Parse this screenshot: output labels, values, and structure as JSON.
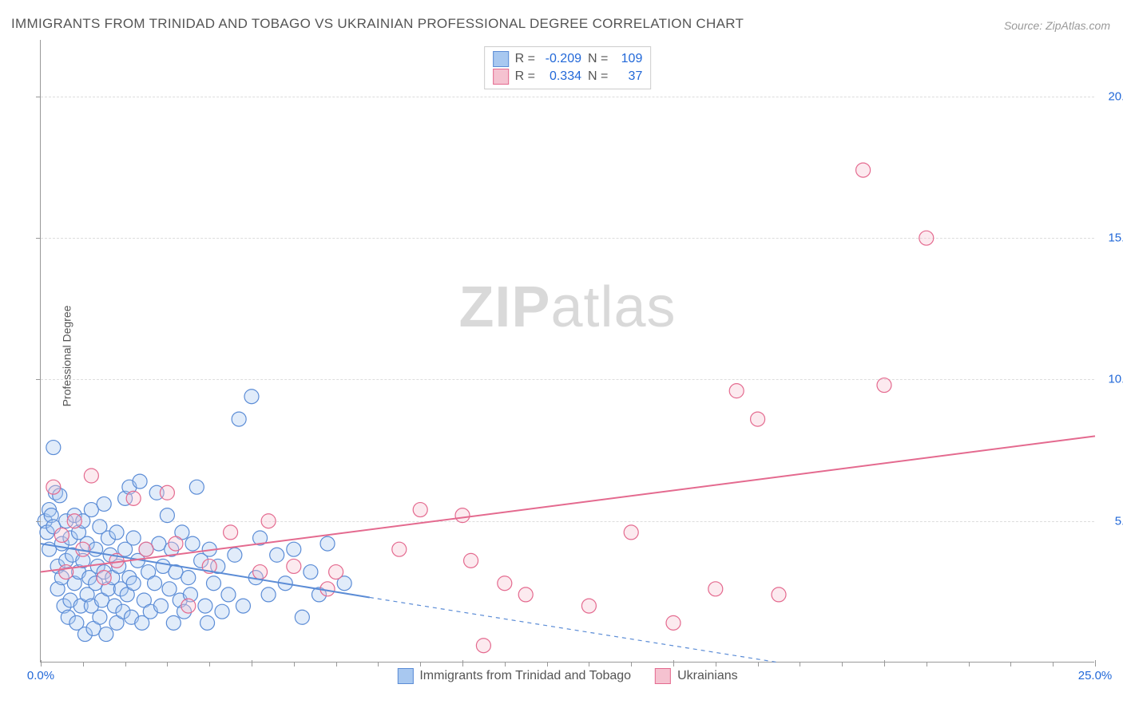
{
  "title": "IMMIGRANTS FROM TRINIDAD AND TOBAGO VS UKRAINIAN PROFESSIONAL DEGREE CORRELATION CHART",
  "source": "Source: ZipAtlas.com",
  "watermark_bold": "ZIP",
  "watermark_rest": "atlas",
  "y_axis_label": "Professional Degree",
  "chart": {
    "type": "scatter",
    "xlim": [
      0,
      25
    ],
    "ylim": [
      0,
      22
    ],
    "x_ticks": [
      0,
      5,
      10,
      15,
      20,
      25
    ],
    "x_tick_labels": [
      "0.0%",
      "",
      "",
      "",
      "",
      "25.0%"
    ],
    "x_minor_ticks": [
      1,
      2,
      3,
      4,
      6,
      7,
      8,
      9,
      11,
      12,
      13,
      14,
      16,
      17,
      18,
      19,
      21,
      22,
      23,
      24
    ],
    "y_ticks": [
      5,
      10,
      15,
      20
    ],
    "y_tick_labels": [
      "5.0%",
      "10.0%",
      "15.0%",
      "20.0%"
    ],
    "grid_lines_y": [
      5,
      10,
      15,
      20
    ],
    "grid_color": "#dddddd",
    "axis_color": "#999999",
    "background_color": "#ffffff",
    "marker_radius": 9,
    "marker_stroke_width": 1.2,
    "marker_fill_opacity": 0.35,
    "trend_line_width": 2,
    "series": [
      {
        "name": "Immigrants from Trinidad and Tobago",
        "color_fill": "#a8c8f0",
        "color_stroke": "#5b8cd6",
        "r_value": "-0.209",
        "n_value": "109",
        "trend": {
          "x1": 0,
          "y1": 4.2,
          "x2": 7.8,
          "y2": 2.3,
          "x2_dash": 17.5,
          "y2_dash": 0
        },
        "points": [
          [
            0.1,
            5.0
          ],
          [
            0.15,
            4.6
          ],
          [
            0.2,
            5.4
          ],
          [
            0.2,
            4.0
          ],
          [
            0.25,
            5.2
          ],
          [
            0.3,
            4.8
          ],
          [
            0.3,
            7.6
          ],
          [
            0.35,
            6.0
          ],
          [
            0.4,
            3.4
          ],
          [
            0.4,
            2.6
          ],
          [
            0.45,
            5.9
          ],
          [
            0.5,
            4.2
          ],
          [
            0.5,
            3.0
          ],
          [
            0.55,
            2.0
          ],
          [
            0.6,
            5.0
          ],
          [
            0.6,
            3.6
          ],
          [
            0.65,
            1.6
          ],
          [
            0.7,
            4.4
          ],
          [
            0.7,
            2.2
          ],
          [
            0.75,
            3.8
          ],
          [
            0.8,
            5.2
          ],
          [
            0.8,
            2.8
          ],
          [
            0.85,
            1.4
          ],
          [
            0.9,
            4.6
          ],
          [
            0.9,
            3.2
          ],
          [
            0.95,
            2.0
          ],
          [
            1.0,
            5.0
          ],
          [
            1.0,
            3.6
          ],
          [
            1.05,
            1.0
          ],
          [
            1.1,
            4.2
          ],
          [
            1.1,
            2.4
          ],
          [
            1.15,
            3.0
          ],
          [
            1.2,
            5.4
          ],
          [
            1.2,
            2.0
          ],
          [
            1.25,
            1.2
          ],
          [
            1.3,
            4.0
          ],
          [
            1.3,
            2.8
          ],
          [
            1.35,
            3.4
          ],
          [
            1.4,
            4.8
          ],
          [
            1.4,
            1.6
          ],
          [
            1.45,
            2.2
          ],
          [
            1.5,
            5.6
          ],
          [
            1.5,
            3.2
          ],
          [
            1.55,
            1.0
          ],
          [
            1.6,
            4.4
          ],
          [
            1.6,
            2.6
          ],
          [
            1.65,
            3.8
          ],
          [
            1.7,
            3.0
          ],
          [
            1.75,
            2.0
          ],
          [
            1.8,
            4.6
          ],
          [
            1.8,
            1.4
          ],
          [
            1.85,
            3.4
          ],
          [
            1.9,
            2.6
          ],
          [
            1.95,
            1.8
          ],
          [
            2.0,
            5.8
          ],
          [
            2.0,
            4.0
          ],
          [
            2.05,
            2.4
          ],
          [
            2.1,
            6.2
          ],
          [
            2.1,
            3.0
          ],
          [
            2.15,
            1.6
          ],
          [
            2.2,
            4.4
          ],
          [
            2.2,
            2.8
          ],
          [
            2.3,
            3.6
          ],
          [
            2.35,
            6.4
          ],
          [
            2.4,
            1.4
          ],
          [
            2.45,
            2.2
          ],
          [
            2.5,
            4.0
          ],
          [
            2.55,
            3.2
          ],
          [
            2.6,
            1.8
          ],
          [
            2.7,
            2.8
          ],
          [
            2.75,
            6.0
          ],
          [
            2.8,
            4.2
          ],
          [
            2.85,
            2.0
          ],
          [
            2.9,
            3.4
          ],
          [
            3.0,
            5.2
          ],
          [
            3.05,
            2.6
          ],
          [
            3.1,
            4.0
          ],
          [
            3.15,
            1.4
          ],
          [
            3.2,
            3.2
          ],
          [
            3.3,
            2.2
          ],
          [
            3.35,
            4.6
          ],
          [
            3.4,
            1.8
          ],
          [
            3.5,
            3.0
          ],
          [
            3.55,
            2.4
          ],
          [
            3.6,
            4.2
          ],
          [
            3.7,
            6.2
          ],
          [
            3.8,
            3.6
          ],
          [
            3.9,
            2.0
          ],
          [
            3.95,
            1.4
          ],
          [
            4.0,
            4.0
          ],
          [
            4.1,
            2.8
          ],
          [
            4.2,
            3.4
          ],
          [
            4.3,
            1.8
          ],
          [
            4.45,
            2.4
          ],
          [
            4.6,
            3.8
          ],
          [
            4.7,
            8.6
          ],
          [
            4.8,
            2.0
          ],
          [
            5.0,
            9.4
          ],
          [
            5.1,
            3.0
          ],
          [
            5.2,
            4.4
          ],
          [
            5.4,
            2.4
          ],
          [
            5.6,
            3.8
          ],
          [
            5.8,
            2.8
          ],
          [
            6.0,
            4.0
          ],
          [
            6.2,
            1.6
          ],
          [
            6.4,
            3.2
          ],
          [
            6.6,
            2.4
          ],
          [
            6.8,
            4.2
          ],
          [
            7.2,
            2.8
          ]
        ]
      },
      {
        "name": "Ukrainians",
        "color_fill": "#f5c2d0",
        "color_stroke": "#e46a8f",
        "r_value": "0.334",
        "n_value": "37",
        "trend": {
          "x1": 0,
          "y1": 3.2,
          "x2": 25,
          "y2": 8.0
        },
        "points": [
          [
            0.3,
            6.2
          ],
          [
            0.5,
            4.5
          ],
          [
            0.6,
            3.2
          ],
          [
            0.8,
            5.0
          ],
          [
            1.0,
            4.0
          ],
          [
            1.2,
            6.6
          ],
          [
            1.5,
            3.0
          ],
          [
            1.8,
            3.6
          ],
          [
            2.2,
            5.8
          ],
          [
            2.5,
            4.0
          ],
          [
            3.0,
            6.0
          ],
          [
            3.2,
            4.2
          ],
          [
            3.5,
            2.0
          ],
          [
            4.0,
            3.4
          ],
          [
            4.5,
            4.6
          ],
          [
            5.2,
            3.2
          ],
          [
            5.4,
            5.0
          ],
          [
            6.0,
            3.4
          ],
          [
            6.8,
            2.6
          ],
          [
            7.0,
            3.2
          ],
          [
            8.5,
            4.0
          ],
          [
            9.0,
            5.4
          ],
          [
            10.0,
            5.2
          ],
          [
            10.2,
            3.6
          ],
          [
            10.5,
            0.6
          ],
          [
            11.0,
            2.8
          ],
          [
            11.5,
            2.4
          ],
          [
            13.0,
            2.0
          ],
          [
            14.0,
            4.6
          ],
          [
            15.0,
            1.4
          ],
          [
            16.0,
            2.6
          ],
          [
            16.5,
            9.6
          ],
          [
            17.0,
            8.6
          ],
          [
            17.5,
            2.4
          ],
          [
            19.5,
            17.4
          ],
          [
            20.0,
            9.8
          ],
          [
            21.0,
            15.0
          ]
        ]
      }
    ]
  },
  "stats_legend": {
    "r_label": "R =",
    "n_label": "N ="
  },
  "text_color_axis": "#2268d8"
}
